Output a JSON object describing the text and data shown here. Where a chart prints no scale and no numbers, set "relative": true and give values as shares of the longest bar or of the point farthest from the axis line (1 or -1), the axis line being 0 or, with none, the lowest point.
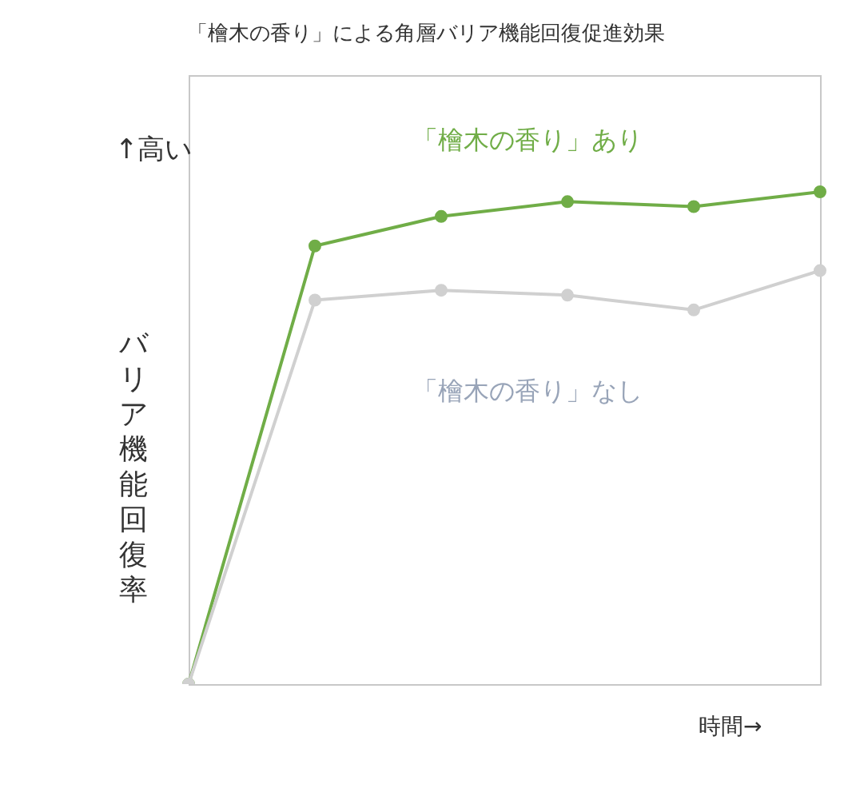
{
  "chart_data": {
    "type": "line",
    "title": "「檜木の香り」による角層バリア機能回復促進効果",
    "xlabel": "時間→",
    "ylabel": "バリア機能回復率",
    "annotations": [
      "↑高い"
    ],
    "relative": true,
    "legend": false,
    "marker": "circle",
    "line_style": "solid",
    "categories": [
      null,
      null,
      null,
      null,
      null,
      null
    ],
    "series": [
      {
        "name": "「檜木の香り」あり",
        "color": "#70ad47",
        "values": [
          0,
          0.89,
          0.95,
          0.98,
          0.97,
          1
        ]
      },
      {
        "name": "「檜木の香り」なし",
        "color": "#d0d0d0",
        "values": [
          0,
          0.78,
          0.8,
          0.79,
          0.76,
          0.84
        ]
      }
    ]
  }
}
